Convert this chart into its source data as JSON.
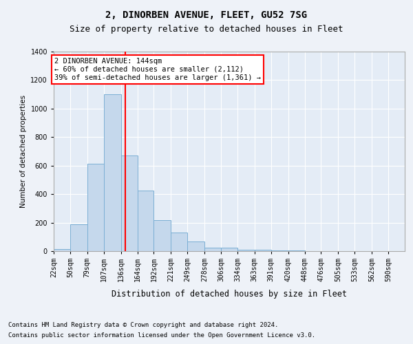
{
  "title": "2, DINORBEN AVENUE, FLEET, GU52 7SG",
  "subtitle": "Size of property relative to detached houses in Fleet",
  "xlabel": "Distribution of detached houses by size in Fleet",
  "ylabel": "Number of detached properties",
  "footnote1": "Contains HM Land Registry data © Crown copyright and database right 2024.",
  "footnote2": "Contains public sector information licensed under the Open Government Licence v3.0.",
  "annotation_line1": "2 DINORBEN AVENUE: 144sqm",
  "annotation_line2": "← 60% of detached houses are smaller (2,112)",
  "annotation_line3": "39% of semi-detached houses are larger (1,361) →",
  "bar_color": "#c5d8ec",
  "bar_edge_color": "#7bafd4",
  "red_line_x": 144,
  "categories": [
    "22sqm",
    "50sqm",
    "79sqm",
    "107sqm",
    "136sqm",
    "164sqm",
    "192sqm",
    "221sqm",
    "249sqm",
    "278sqm",
    "306sqm",
    "334sqm",
    "363sqm",
    "391sqm",
    "420sqm",
    "448sqm",
    "476sqm",
    "505sqm",
    "533sqm",
    "562sqm",
    "590sqm"
  ],
  "bin_edges": [
    22,
    50,
    79,
    107,
    136,
    164,
    192,
    221,
    249,
    278,
    306,
    334,
    363,
    391,
    420,
    448,
    476,
    505,
    533,
    562,
    590,
    618
  ],
  "values": [
    15,
    190,
    615,
    1100,
    670,
    425,
    215,
    130,
    70,
    25,
    25,
    10,
    10,
    5,
    5,
    0,
    0,
    0,
    0,
    0,
    0
  ],
  "ylim": [
    0,
    1400
  ],
  "yticks": [
    0,
    200,
    400,
    600,
    800,
    1000,
    1200,
    1400
  ],
  "background_color": "#eef2f8",
  "plot_background": "#e4ecf6",
  "title_fontsize": 10,
  "subtitle_fontsize": 9,
  "grid_color": "#ffffff",
  "footnote_fontsize": 6.5,
  "ylabel_fontsize": 7.5,
  "xlabel_fontsize": 8.5,
  "tick_fontsize": 7,
  "annot_fontsize": 7.5
}
